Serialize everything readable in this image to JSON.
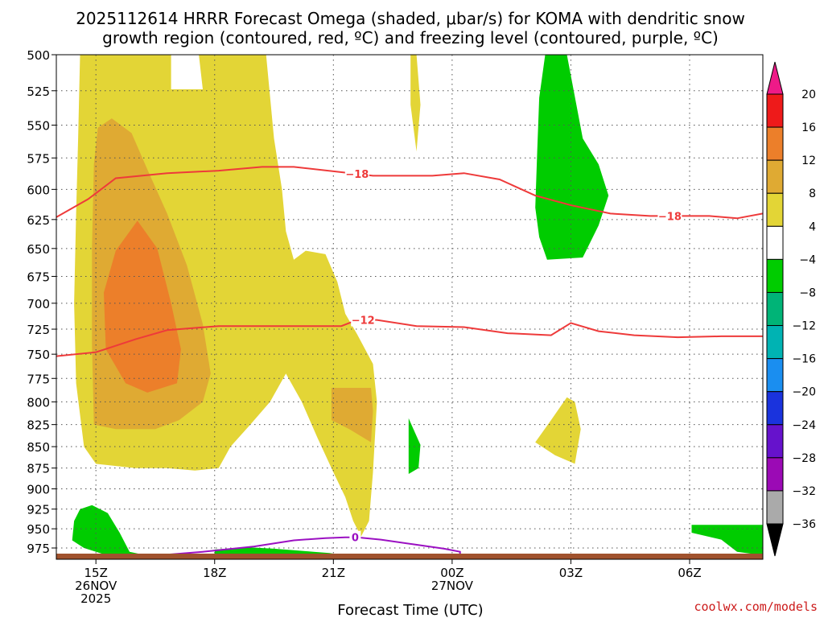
{
  "title_line1": "2025112614 HRRR Forecast Omega (shaded, μbar/s) for KOMA with dendritic snow",
  "title_line2": "growth region (contoured, red, ºC) and freezing level (contoured, purple, ºC)",
  "credit": "coolwx.com/models",
  "chart_data": {
    "type": "area",
    "title": "2025112614 HRRR Forecast Omega (shaded, μbar/s) for KOMA with dendritic snow growth region (contoured, red, ºC) and freezing level (contoured, purple, ºC)",
    "xlabel": "Forecast Time (UTC)",
    "ylabel": "",
    "x_ticks": [
      {
        "hours": 1,
        "lines": [
          "15Z",
          "26NOV",
          "2025"
        ]
      },
      {
        "hours": 4,
        "lines": [
          "18Z"
        ]
      },
      {
        "hours": 7,
        "lines": [
          "21Z"
        ]
      },
      {
        "hours": 10,
        "lines": [
          "00Z",
          "27NOV"
        ]
      },
      {
        "hours": 13,
        "lines": [
          "03Z"
        ]
      },
      {
        "hours": 16,
        "lines": [
          "06Z"
        ]
      }
    ],
    "x_range_hours": [
      0,
      17.85
    ],
    "y_levels_hPa": [
      500,
      525,
      550,
      575,
      600,
      625,
      650,
      675,
      700,
      725,
      750,
      775,
      800,
      825,
      850,
      875,
      900,
      925,
      950,
      975
    ],
    "y_range_hPa": [
      500,
      990
    ],
    "y_scale": "log-pressure (inverted)",
    "grid": true,
    "colorbar": {
      "labels": [
        "20",
        "16",
        "12",
        "8",
        "4",
        "−4",
        "−8",
        "−12",
        "−16",
        "−20",
        "−24",
        "−28",
        "−32",
        "−36"
      ],
      "colors": [
        "#ee1a1a",
        "#ec7f2a",
        "#dfaa33",
        "#e3d536",
        "#ffffff",
        "#00cc00",
        "#00b477",
        "#00b3b3",
        "#1a8ef0",
        "#1a33dd",
        "#6612cc",
        "#9b0ab5",
        "#aaaaaa"
      ],
      "top_color": "#ee1a88",
      "bottom_color": "#000000"
    },
    "shading": [
      {
        "color": "#e3d536",
        "band": "4 to 8",
        "points": [
          [
            0.6,
            500
          ],
          [
            2.9,
            500
          ],
          [
            2.9,
            524
          ],
          [
            3.7,
            524
          ],
          [
            3.6,
            500
          ],
          [
            5.3,
            500
          ],
          [
            5.5,
            560
          ],
          [
            5.7,
            600
          ],
          [
            5.8,
            635
          ],
          [
            6.0,
            660
          ],
          [
            6.3,
            652
          ],
          [
            6.8,
            655
          ],
          [
            7.1,
            680
          ],
          [
            7.3,
            710
          ],
          [
            7.6,
            730
          ],
          [
            8.0,
            760
          ],
          [
            8.1,
            800
          ],
          [
            8.0,
            880
          ],
          [
            7.9,
            940
          ],
          [
            7.7,
            960
          ],
          [
            7.5,
            940
          ],
          [
            7.3,
            910
          ],
          [
            7.0,
            880
          ],
          [
            6.6,
            840
          ],
          [
            6.2,
            800
          ],
          [
            5.8,
            770
          ],
          [
            5.4,
            800
          ],
          [
            4.9,
            825
          ],
          [
            4.4,
            850
          ],
          [
            4.1,
            875
          ],
          [
            3.5,
            878
          ],
          [
            2.8,
            875
          ],
          [
            2.0,
            875
          ],
          [
            1.0,
            870
          ],
          [
            0.7,
            850
          ],
          [
            0.5,
            780
          ],
          [
            0.45,
            700
          ],
          [
            0.5,
            620
          ],
          [
            0.55,
            560
          ]
        ]
      },
      {
        "color": "#e3d536",
        "band": "4 to 8",
        "points": [
          [
            8.95,
            500
          ],
          [
            9.1,
            500
          ],
          [
            9.2,
            535
          ],
          [
            9.1,
            570
          ],
          [
            8.95,
            535
          ]
        ]
      },
      {
        "color": "#e3d536",
        "band": "4 to 8",
        "points": [
          [
            12.9,
            795
          ],
          [
            13.1,
            800
          ],
          [
            13.25,
            830
          ],
          [
            13.1,
            870
          ],
          [
            12.6,
            860
          ],
          [
            12.1,
            845
          ],
          [
            12.5,
            820
          ]
        ]
      },
      {
        "color": "#dfaa33",
        "band": "8 to 12",
        "points": [
          [
            1.4,
            545
          ],
          [
            1.9,
            556
          ],
          [
            2.3,
            584
          ],
          [
            2.8,
            620
          ],
          [
            3.3,
            665
          ],
          [
            3.7,
            720
          ],
          [
            3.9,
            770
          ],
          [
            3.7,
            800
          ],
          [
            3.1,
            820
          ],
          [
            2.5,
            830
          ],
          [
            1.5,
            830
          ],
          [
            0.95,
            825
          ],
          [
            0.9,
            740
          ],
          [
            0.9,
            650
          ],
          [
            0.95,
            580
          ],
          [
            1.05,
            552
          ]
        ]
      },
      {
        "color": "#dfaa33",
        "band": "8 to 12",
        "points": [
          [
            6.95,
            785
          ],
          [
            7.95,
            785
          ],
          [
            8.0,
            810
          ],
          [
            7.95,
            845
          ],
          [
            7.4,
            830
          ],
          [
            6.95,
            820
          ]
        ]
      },
      {
        "color": "#ec7f2a",
        "band": "12 to 16",
        "points": [
          [
            2.05,
            626
          ],
          [
            2.55,
            650
          ],
          [
            2.9,
            700
          ],
          [
            3.15,
            745
          ],
          [
            3.05,
            780
          ],
          [
            2.3,
            790
          ],
          [
            1.75,
            780
          ],
          [
            1.25,
            745
          ],
          [
            1.2,
            690
          ],
          [
            1.5,
            652
          ]
        ]
      },
      {
        "color": "#00cc00",
        "band": "-8 to -4",
        "points": [
          [
            12.35,
            500
          ],
          [
            12.9,
            500
          ],
          [
            13.3,
            560
          ],
          [
            13.7,
            580
          ],
          [
            13.95,
            605
          ],
          [
            13.7,
            630
          ],
          [
            13.3,
            658
          ],
          [
            12.4,
            660
          ],
          [
            12.2,
            640
          ],
          [
            12.1,
            615
          ],
          [
            12.15,
            570
          ],
          [
            12.2,
            530
          ]
        ]
      },
      {
        "color": "#00cc00",
        "band": "-8 to -4",
        "points": [
          [
            8.9,
            818
          ],
          [
            9.2,
            848
          ],
          [
            9.15,
            875
          ],
          [
            8.9,
            882
          ],
          [
            8.9,
            850
          ]
        ]
      },
      {
        "color": "#00cc00",
        "band": "-8 to -4",
        "points": [
          [
            0.9,
            920
          ],
          [
            1.3,
            930
          ],
          [
            1.6,
            955
          ],
          [
            1.85,
            980
          ],
          [
            2.3,
            985
          ],
          [
            1.3,
            985
          ],
          [
            0.7,
            975
          ],
          [
            0.4,
            965
          ],
          [
            0.45,
            940
          ],
          [
            0.6,
            925
          ]
        ]
      },
      {
        "color": "#00cc00",
        "band": "-8 to -4",
        "points": [
          [
            4.0,
            977
          ],
          [
            4.8,
            974
          ],
          [
            5.5,
            976
          ],
          [
            6.0,
            978
          ],
          [
            6.5,
            980
          ],
          [
            7.0,
            982
          ],
          [
            6.0,
            986
          ],
          [
            5.0,
            986
          ],
          [
            4.0,
            984
          ]
        ]
      },
      {
        "color": "#00cc00",
        "band": "-8 to -4",
        "points": [
          [
            16.05,
            945
          ],
          [
            17.9,
            945
          ],
          [
            17.9,
            985
          ],
          [
            17.2,
            980
          ],
          [
            16.8,
            964
          ],
          [
            16.05,
            955
          ]
        ]
      }
    ],
    "contours": [
      {
        "label": "−18",
        "color": "#ee3a3a",
        "points": [
          [
            0,
            623
          ],
          [
            0.8,
            608
          ],
          [
            1.5,
            591
          ],
          [
            2.8,
            587
          ],
          [
            4.1,
            585
          ],
          [
            5.2,
            582
          ],
          [
            6.0,
            582
          ],
          [
            8.0,
            589
          ],
          [
            9.5,
            589
          ],
          [
            10.3,
            587
          ],
          [
            11.2,
            592
          ],
          [
            12.1,
            605
          ],
          [
            13.0,
            613
          ],
          [
            14.0,
            620
          ],
          [
            15.0,
            622
          ],
          [
            15.6,
            622
          ],
          [
            16.5,
            622
          ],
          [
            17.2,
            624
          ],
          [
            17.85,
            620
          ]
        ]
      },
      {
        "label": "−12",
        "color": "#ee3a3a",
        "points": [
          [
            0,
            752
          ],
          [
            1.0,
            748
          ],
          [
            2.0,
            735
          ],
          [
            2.8,
            726
          ],
          [
            4.1,
            722
          ],
          [
            5.4,
            722
          ],
          [
            6.6,
            722
          ],
          [
            7.2,
            722
          ],
          [
            7.6,
            716
          ],
          [
            8.1,
            716
          ],
          [
            9.1,
            722
          ],
          [
            10.3,
            723
          ],
          [
            11.4,
            729
          ],
          [
            12.5,
            731
          ],
          [
            13.0,
            719
          ],
          [
            13.7,
            727
          ],
          [
            14.6,
            731
          ],
          [
            15.7,
            733
          ],
          [
            16.8,
            732
          ],
          [
            17.85,
            732
          ]
        ]
      },
      {
        "label": "0",
        "color": "#9b10c2",
        "points": [
          [
            2.3,
            986
          ],
          [
            3.7,
            980
          ],
          [
            5.0,
            973
          ],
          [
            6.0,
            965
          ],
          [
            6.8,
            962
          ],
          [
            7.3,
            961
          ],
          [
            7.6,
            961
          ],
          [
            8.2,
            964
          ],
          [
            9.0,
            970
          ],
          [
            9.8,
            976
          ],
          [
            10.2,
            980
          ],
          [
            10.2,
            988
          ],
          [
            9.2,
            988
          ],
          [
            8.4,
            988
          ]
        ]
      }
    ]
  }
}
